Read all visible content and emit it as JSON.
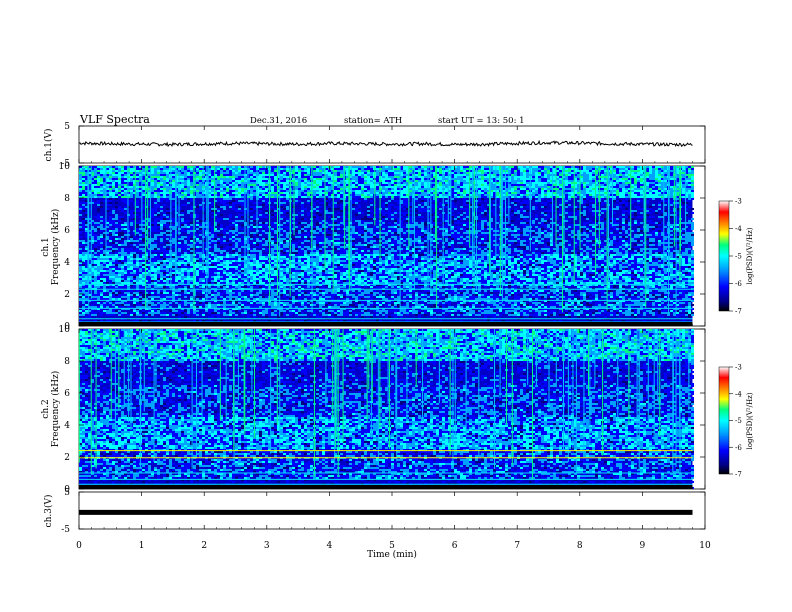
{
  "header": {
    "title": "VLF  Spectra",
    "date": "Dec.31, 2016",
    "station": "station= ATH",
    "start": "start  UT  =    13: 50: 1"
  },
  "chart_data": [
    {
      "type": "line",
      "name": "ch1-waveform",
      "ylabel": "ch.1(V)",
      "ylim": [
        -5,
        5
      ],
      "yticks": [
        "5",
        "-5"
      ],
      "x": [
        0,
        0.5,
        1,
        1.5,
        2,
        2.5,
        3,
        3.5,
        4,
        4.5,
        5,
        5.5,
        6,
        6.5,
        7,
        7.5,
        8,
        8.5,
        9,
        9.5,
        9.8
      ],
      "y": [
        0.4,
        0.2,
        0.1,
        0.0,
        0.2,
        0.3,
        0.2,
        0.1,
        0.3,
        0.2,
        0.1,
        0.2,
        0.0,
        0.1,
        0.3,
        0.5,
        0.4,
        0.2,
        0.1,
        0.0,
        0.0
      ]
    },
    {
      "type": "heatmap",
      "name": "ch1-spectrogram",
      "ylabel": "Frequency (kHz)",
      "channel_label": "ch.1",
      "ylim": [
        0,
        10
      ],
      "yticks": [
        "0",
        "2",
        "4",
        "6",
        "8",
        "10"
      ],
      "colorbar": {
        "label": "log(PSD)(V²/Hz)",
        "ticks": [
          "-3",
          "-4",
          "-5",
          "-6",
          "-7"
        ],
        "range": [
          -7,
          -3
        ]
      }
    },
    {
      "type": "heatmap",
      "name": "ch2-spectrogram",
      "ylabel": "Frequency (kHz)",
      "channel_label": "ch.2",
      "ylim": [
        0,
        10
      ],
      "yticks": [
        "0",
        "2",
        "4",
        "6",
        "8",
        "10"
      ],
      "colorbar": {
        "label": "log(PSD)(V²/Hz)",
        "ticks": [
          "-3",
          "-4",
          "-5",
          "-6",
          "-7"
        ],
        "range": [
          -7,
          -3
        ]
      }
    },
    {
      "type": "line",
      "name": "ch3-waveform",
      "ylabel": "ch.3(V)",
      "ylim": [
        -5,
        5
      ],
      "yticks": [
        "5",
        "-5"
      ],
      "x": [
        0,
        9.8
      ],
      "y": [
        -0.5,
        -0.5
      ]
    }
  ],
  "xaxis": {
    "xlabel": "Time  (min)",
    "xlim": [
      0,
      10
    ],
    "ticks": [
      "0",
      "1",
      "2",
      "3",
      "4",
      "5",
      "6",
      "7",
      "8",
      "9",
      "10"
    ]
  },
  "colors": {
    "colormap": [
      "#000000",
      "#000080",
      "#0000ff",
      "#00a0ff",
      "#00ffff",
      "#00ff80",
      "#ffff00",
      "#ff8000",
      "#ff0000",
      "#ffffff"
    ]
  }
}
